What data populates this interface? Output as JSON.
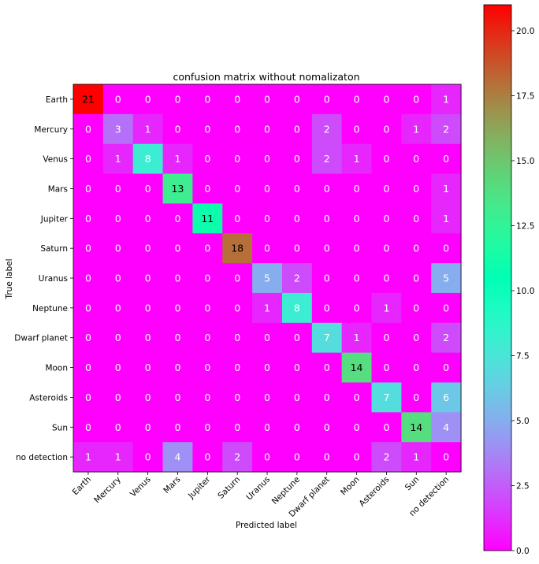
{
  "chart_data": {
    "type": "heatmap",
    "title": "confusion matrix without nomalizaton",
    "xlabel": "Predicted label",
    "ylabel": "True label",
    "x_categories": [
      "Earth",
      "Mercury",
      "Venus",
      "Mars",
      "Jupiter",
      "Saturn",
      "Uranus",
      "Neptune",
      "Dwarf planet",
      "Moon",
      "Asteroids",
      "Sun",
      "no detection"
    ],
    "y_categories": [
      "Earth",
      "Mercury",
      "Venus",
      "Mars",
      "Jupiter",
      "Saturn",
      "Uranus",
      "Neptune",
      "Dwarf planet",
      "Moon",
      "Asteroids",
      "Sun",
      "no detection"
    ],
    "values": [
      [
        21,
        0,
        0,
        0,
        0,
        0,
        0,
        0,
        0,
        0,
        0,
        0,
        1
      ],
      [
        0,
        3,
        1,
        0,
        0,
        0,
        0,
        0,
        2,
        0,
        0,
        1,
        2
      ],
      [
        0,
        1,
        8,
        1,
        0,
        0,
        0,
        0,
        2,
        1,
        0,
        0,
        0
      ],
      [
        0,
        0,
        0,
        13,
        0,
        0,
        0,
        0,
        0,
        0,
        0,
        0,
        1
      ],
      [
        0,
        0,
        0,
        0,
        11,
        0,
        0,
        0,
        0,
        0,
        0,
        0,
        1
      ],
      [
        0,
        0,
        0,
        0,
        0,
        18,
        0,
        0,
        0,
        0,
        0,
        0,
        0
      ],
      [
        0,
        0,
        0,
        0,
        0,
        0,
        5,
        2,
        0,
        0,
        0,
        0,
        5
      ],
      [
        0,
        0,
        0,
        0,
        0,
        0,
        1,
        8,
        0,
        0,
        1,
        0,
        0
      ],
      [
        0,
        0,
        0,
        0,
        0,
        0,
        0,
        0,
        7,
        1,
        0,
        0,
        2
      ],
      [
        0,
        0,
        0,
        0,
        0,
        0,
        0,
        0,
        0,
        14,
        0,
        0,
        0
      ],
      [
        0,
        0,
        0,
        0,
        0,
        0,
        0,
        0,
        0,
        0,
        7,
        0,
        6
      ],
      [
        0,
        0,
        0,
        0,
        0,
        0,
        0,
        0,
        0,
        0,
        0,
        14,
        4
      ],
      [
        1,
        1,
        0,
        4,
        0,
        2,
        0,
        0,
        0,
        0,
        2,
        1,
        0
      ]
    ],
    "colorscale": "rainbow",
    "color_range": [
      0,
      21
    ],
    "colorbar_ticks": [
      "0.0",
      "2.5",
      "5.0",
      "7.5",
      "10.0",
      "12.5",
      "15.0",
      "17.5",
      "20.0"
    ],
    "colorbar_tick_values": [
      0,
      2.5,
      5,
      7.5,
      10,
      12.5,
      15,
      17.5,
      20
    ],
    "grid": false
  }
}
